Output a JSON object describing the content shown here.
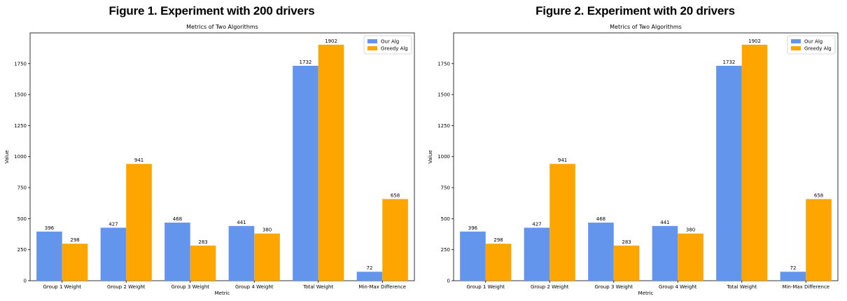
{
  "figures": [
    {
      "heading": "Figure 1. Experiment with 200 drivers",
      "chart_data": {
        "type": "bar",
        "title": "Metrics of Two Algorithms",
        "xlabel": "Metric",
        "ylabel": "Value",
        "categories": [
          "Group 1 Weight",
          "Group 2 Weight",
          "Group 3 Weight",
          "Group 4 Weight",
          "Total Weight",
          "Min-Max Difference"
        ],
        "series": [
          {
            "name": "Our Alg",
            "values": [
              396,
              427,
              468,
              441,
              1732,
              72
            ],
            "color": "#6495ED"
          },
          {
            "name": "Greedy Alg",
            "values": [
              298,
              941,
              283,
              380,
              1902,
              658
            ],
            "color": "#FFA500"
          }
        ],
        "ylim": [
          0,
          1997
        ],
        "yticks": [
          0,
          250,
          500,
          750,
          1000,
          1250,
          1500,
          1750
        ],
        "legend": "top-right",
        "grid": false
      }
    },
    {
      "heading": "Figure 2. Experiment with 20 drivers",
      "chart_data": {
        "type": "bar",
        "title": "Metrics of Two Algorithms",
        "xlabel": "Metric",
        "ylabel": "Value",
        "categories": [
          "Group 1 Weight",
          "Group 2 Weight",
          "Group 3 Weight",
          "Group 4 Weight",
          "Total Weight",
          "Min-Max Difference"
        ],
        "series": [
          {
            "name": "Our Alg",
            "values": [
              396,
              427,
              468,
              441,
              1732,
              72
            ],
            "color": "#6495ED"
          },
          {
            "name": "Greedy Alg",
            "values": [
              298,
              941,
              283,
              380,
              1902,
              658
            ],
            "color": "#FFA500"
          }
        ],
        "ylim": [
          0,
          1997
        ],
        "yticks": [
          0,
          250,
          500,
          750,
          1000,
          1250,
          1500,
          1750
        ],
        "legend": "top-right",
        "grid": false
      }
    }
  ]
}
